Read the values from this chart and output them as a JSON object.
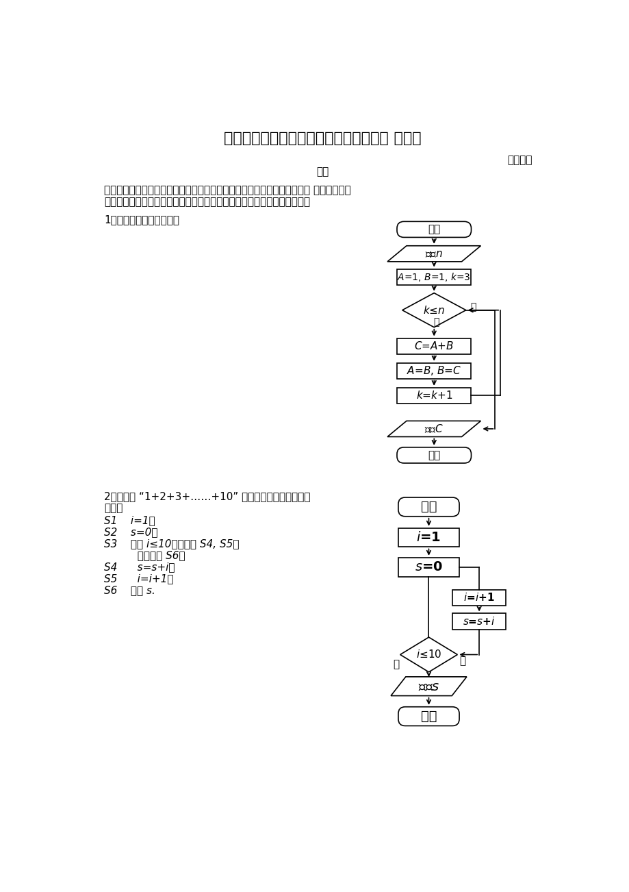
{
  "title": "《算法的三种基本逻辑结构和框图表示》 导学案",
  "subtitle": "第二课时",
  "author": "杨刚",
  "intro_line1": "阅读课文，说明什么是算法的循环结构。体会什么样的运算用循环结构表示 如何用数学语",
  "intro_line2": "言描述具有循环结构的运算；如何把循环结构的数学描述转化为框图表示。",
  "section1": "1、结合课文读程序框图：",
  "section2_line1": "2、读计算 “1+2+3+……+10” 的値的算法，及程序框图",
  "section2_line2": "算法：",
  "algo_lines": [
    "S1    i=1；",
    "S2    s=0；",
    "S3    如果 i≤10，则执行 S4, S5，",
    "          否则执行 S6；",
    "S4      s=s+i，",
    "S5      i=i+1；",
    "S6    输出 s."
  ],
  "bg_color": "#ffffff",
  "box_color": "#000000",
  "text_color": "#000000"
}
